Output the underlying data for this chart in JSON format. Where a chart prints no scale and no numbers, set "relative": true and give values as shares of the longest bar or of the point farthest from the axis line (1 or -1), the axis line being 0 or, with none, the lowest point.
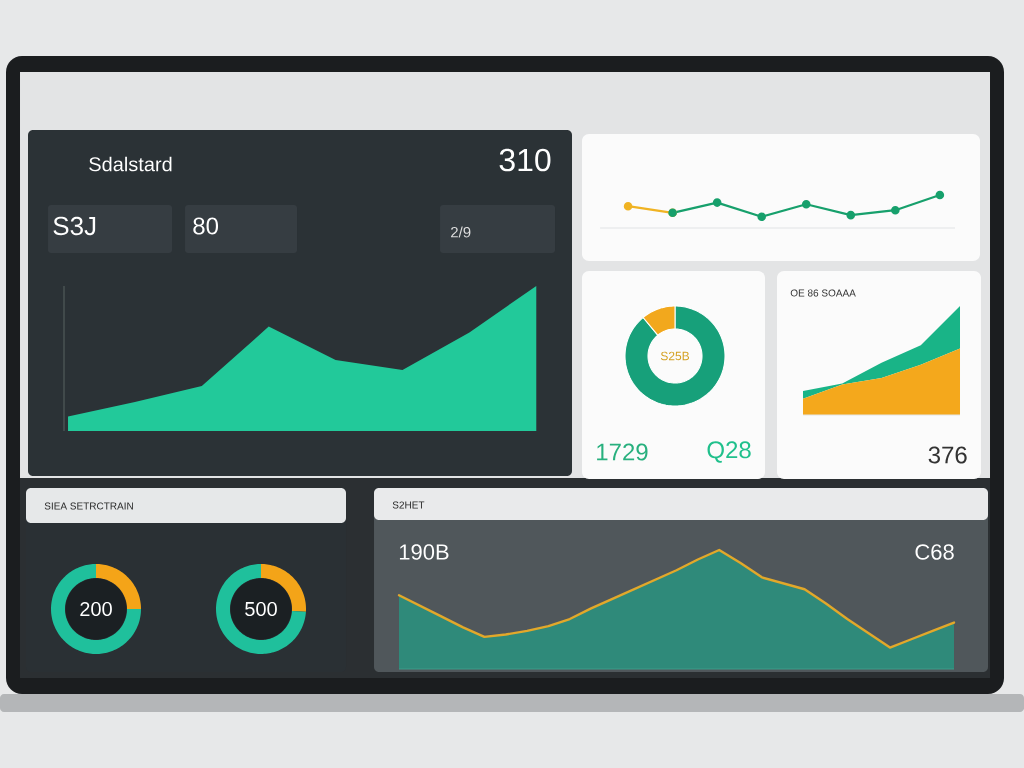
{
  "chart_data": [
    {
      "type": "other",
      "title": "Sdalstard",
      "annotations": [
        "310",
        "S3J",
        "80",
        "2/9"
      ]
    },
    {
      "type": "area",
      "relative": true,
      "categories": [
        null,
        null,
        null,
        null,
        null,
        null,
        null,
        null
      ],
      "values": [
        0.1,
        0.2,
        0.31,
        0.72,
        0.49,
        0.42,
        0.68,
        1.0
      ],
      "color": "#22c99a"
    },
    {
      "type": "line",
      "relative": true,
      "marker": "circle",
      "categories": [
        null,
        null,
        null,
        null,
        null,
        null,
        null,
        null
      ],
      "series": [
        {
          "color": "#f0b323",
          "values": [
            0.66,
            0.46,
            null,
            null,
            null,
            null,
            null,
            null
          ]
        },
        {
          "color": "#17a06c",
          "values": [
            null,
            0.46,
            0.77,
            0.34,
            0.72,
            0.39,
            0.54,
            1.0
          ]
        }
      ]
    },
    {
      "type": "donut",
      "categories": [
        null,
        null
      ],
      "values": [
        89,
        11
      ],
      "colors": [
        "#17a07a",
        "#f2a81d"
      ],
      "annotations": [
        "S25B",
        "1729",
        "Q28"
      ]
    },
    {
      "type": "area",
      "relative": true,
      "stacked": true,
      "title": "OE 86 SOAAA",
      "categories": [
        null,
        null,
        null,
        null,
        null
      ],
      "series": [
        {
          "color": "#f4a81c",
          "values": [
            0.15,
            0.28,
            0.34,
            0.46,
            0.61
          ]
        },
        {
          "color": "#19b487",
          "values": [
            0.07,
            0.01,
            0.14,
            0.18,
            0.39
          ]
        }
      ],
      "annotations": [
        "376"
      ]
    },
    {
      "type": "donut",
      "title": "SIEA SETRCTRAIN",
      "categories": [
        null,
        null
      ],
      "values": [
        25,
        75
      ],
      "colors": [
        "#f4a418",
        "#1fc09c"
      ],
      "annotations": [
        "200"
      ]
    },
    {
      "type": "donut",
      "categories": [
        null,
        null
      ],
      "values": [
        26,
        74
      ],
      "colors": [
        "#f4a418",
        "#1fc09c"
      ],
      "annotations": [
        "500"
      ]
    },
    {
      "type": "area",
      "relative": true,
      "title": "S2HET",
      "categories": [
        null,
        null,
        null,
        null,
        null,
        null,
        null,
        null,
        null,
        null,
        null,
        null,
        null,
        null,
        null,
        null,
        null,
        null,
        null,
        null,
        null,
        null,
        null,
        null,
        null,
        null,
        null
      ],
      "series": [
        {
          "type": "area",
          "color": "#2f8a7a",
          "values": [
            0.62,
            0.53,
            0.44,
            0.35,
            0.27,
            0.29,
            0.32,
            0.36,
            0.42,
            0.51,
            0.59,
            0.67,
            0.75,
            0.83,
            0.92,
            1.0,
            0.89,
            0.77,
            0.72,
            0.67,
            0.55,
            0.42,
            0.3,
            0.18,
            0.25,
            0.32,
            0.39
          ]
        },
        {
          "type": "line",
          "color": "#e2a82a",
          "values": [
            0.62,
            0.53,
            0.44,
            0.35,
            0.27,
            0.29,
            0.32,
            0.36,
            0.42,
            0.51,
            0.59,
            0.67,
            0.75,
            0.83,
            0.92,
            1.0,
            0.89,
            0.77,
            0.72,
            0.67,
            0.55,
            0.42,
            0.3,
            0.18,
            0.25,
            0.32,
            0.39
          ]
        }
      ],
      "annotations": [
        "190B",
        "C68"
      ]
    }
  ]
}
